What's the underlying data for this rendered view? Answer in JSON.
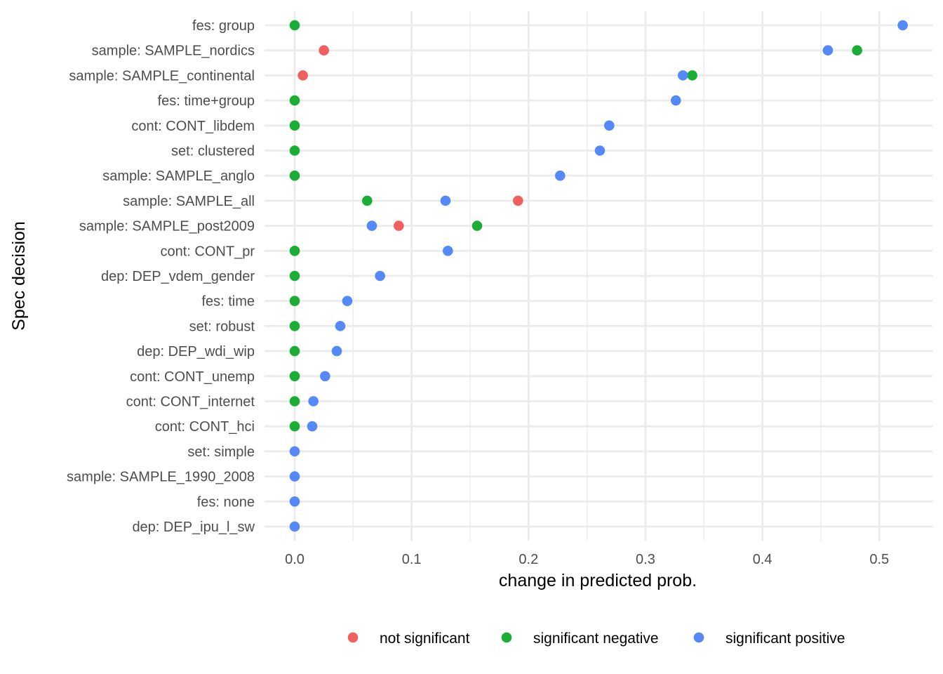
{
  "chart_data": {
    "type": "scatter",
    "title": "",
    "xlabel": "change in predicted prob.",
    "ylabel": "Spec decision",
    "xlim": [
      -0.026,
      0.548
    ],
    "x_ticks": [
      0.0,
      0.1,
      0.2,
      0.3,
      0.4,
      0.5
    ],
    "x_tick_labels": [
      "0.0",
      "0.1",
      "0.2",
      "0.3",
      "0.4",
      "0.5"
    ],
    "grid": true,
    "legend_position": "bottom",
    "categories": [
      "fes: group",
      "sample: SAMPLE_nordics",
      "sample: SAMPLE_continental",
      "fes: time+group",
      "cont: CONT_libdem",
      "set: clustered",
      "sample: SAMPLE_anglo",
      "sample: SAMPLE_all",
      "sample: SAMPLE_post2009",
      "cont: CONT_pr",
      "dep: DEP_vdem_gender",
      "fes: time",
      "set: robust",
      "dep: DEP_wdi_wip",
      "cont: CONT_unemp",
      "cont: CONT_internet",
      "cont: CONT_hci",
      "set: simple",
      "sample: SAMPLE_1990_2008",
      "fes: none",
      "dep: DEP_ipu_l_sw"
    ],
    "series": [
      {
        "name": "not significant",
        "color": "#F0605F",
        "points": [
          {
            "y": "sample: SAMPLE_nordics",
            "x": 0.025
          },
          {
            "y": "sample: SAMPLE_continental",
            "x": 0.007
          },
          {
            "y": "sample: SAMPLE_all",
            "x": 0.191
          },
          {
            "y": "sample: SAMPLE_post2009",
            "x": 0.089
          }
        ]
      },
      {
        "name": "significant negative",
        "color": "#1AAF34",
        "points": [
          {
            "y": "fes: group",
            "x": 0.0
          },
          {
            "y": "sample: SAMPLE_nordics",
            "x": 0.481
          },
          {
            "y": "sample: SAMPLE_continental",
            "x": 0.34
          },
          {
            "y": "fes: time+group",
            "x": 0.0
          },
          {
            "y": "cont: CONT_libdem",
            "x": 0.0
          },
          {
            "y": "set: clustered",
            "x": 0.0
          },
          {
            "y": "sample: SAMPLE_anglo",
            "x": 0.0
          },
          {
            "y": "sample: SAMPLE_all",
            "x": 0.062
          },
          {
            "y": "sample: SAMPLE_post2009",
            "x": 0.156
          },
          {
            "y": "cont: CONT_pr",
            "x": 0.0
          },
          {
            "y": "dep: DEP_vdem_gender",
            "x": 0.0
          },
          {
            "y": "fes: time",
            "x": 0.0
          },
          {
            "y": "set: robust",
            "x": 0.0
          },
          {
            "y": "dep: DEP_wdi_wip",
            "x": 0.0
          },
          {
            "y": "cont: CONT_unemp",
            "x": 0.0
          },
          {
            "y": "cont: CONT_internet",
            "x": 0.0
          },
          {
            "y": "cont: CONT_hci",
            "x": 0.0
          }
        ]
      },
      {
        "name": "significant positive",
        "color": "#5588F8",
        "points": [
          {
            "y": "fes: group",
            "x": 0.52
          },
          {
            "y": "sample: SAMPLE_nordics",
            "x": 0.456
          },
          {
            "y": "sample: SAMPLE_continental",
            "x": 0.332
          },
          {
            "y": "fes: time+group",
            "x": 0.326
          },
          {
            "y": "cont: CONT_libdem",
            "x": 0.269
          },
          {
            "y": "set: clustered",
            "x": 0.261
          },
          {
            "y": "sample: SAMPLE_anglo",
            "x": 0.227
          },
          {
            "y": "sample: SAMPLE_all",
            "x": 0.129
          },
          {
            "y": "sample: SAMPLE_post2009",
            "x": 0.066
          },
          {
            "y": "cont: CONT_pr",
            "x": 0.131
          },
          {
            "y": "dep: DEP_vdem_gender",
            "x": 0.073
          },
          {
            "y": "fes: time",
            "x": 0.045
          },
          {
            "y": "set: robust",
            "x": 0.039
          },
          {
            "y": "dep: DEP_wdi_wip",
            "x": 0.036
          },
          {
            "y": "cont: CONT_unemp",
            "x": 0.026
          },
          {
            "y": "cont: CONT_internet",
            "x": 0.016
          },
          {
            "y": "cont: CONT_hci",
            "x": 0.015
          },
          {
            "y": "set: simple",
            "x": 0.0
          },
          {
            "y": "sample: SAMPLE_1990_2008",
            "x": 0.0
          },
          {
            "y": "fes: none",
            "x": 0.0
          },
          {
            "y": "dep: DEP_ipu_l_sw",
            "x": 0.0
          }
        ]
      }
    ]
  }
}
